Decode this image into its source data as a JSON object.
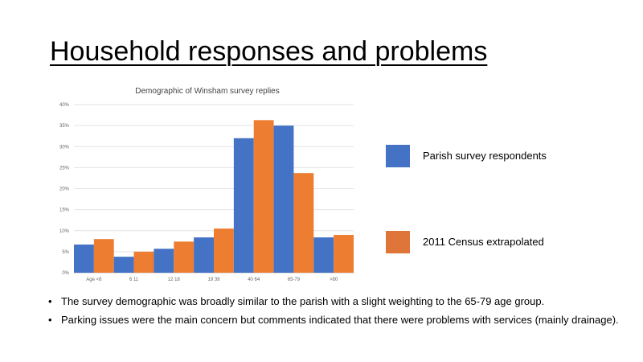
{
  "slide": {
    "title": "Household responses and problems",
    "bullets": [
      "The survey demographic was broadly similar to the parish with a slight weighting to the 65-79 age group.",
      "Parking issues were the main concern but comments indicated that there were problems with services (mainly drainage)."
    ]
  },
  "legend": [
    {
      "label": "Parish survey respondents",
      "color": "#4472C4"
    },
    {
      "label": "2011  Census extrapolated",
      "color": "#E0753A"
    }
  ],
  "chart_data": {
    "type": "bar",
    "title": "Demographic of Winsham survey replies",
    "xlabel": "",
    "ylabel": "",
    "categories": [
      "Age <6",
      "6 11",
      "12 18",
      "19 39",
      "40 64",
      "65-79",
      ">80"
    ],
    "series": [
      {
        "name": "Parish survey respondents",
        "color": "#4472C4",
        "values": [
          6.7,
          3.8,
          5.7,
          8.4,
          32.0,
          35.0,
          8.4
        ]
      },
      {
        "name": "2011  Census extrapolated",
        "color": "#ED7D31",
        "values": [
          8.0,
          5.0,
          7.4,
          10.5,
          36.3,
          23.7,
          9.0
        ]
      }
    ],
    "yticks": [
      "0%",
      "5%",
      "10%",
      "15%",
      "20%",
      "25%",
      "30%",
      "35%",
      "40%"
    ],
    "ylim": [
      0,
      40
    ],
    "grid": true
  }
}
